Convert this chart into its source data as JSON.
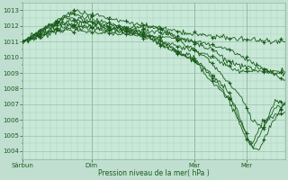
{
  "xlabel": "Pression niveau de la mer( hPa )",
  "bg_color": "#c0dfd0",
  "plot_bg_color": "#c8e8d8",
  "grid_color_minor": "#a8c8b8",
  "grid_color_major": "#90b8a0",
  "line_color": "#1a5c1a",
  "ylim": [
    1003.5,
    1013.5
  ],
  "yticks": [
    1004,
    1005,
    1006,
    1007,
    1008,
    1009,
    1010,
    1011,
    1012,
    1013
  ],
  "day_labels": [
    "Sârbun",
    "Dim",
    "Mar",
    "Mer"
  ],
  "day_positions": [
    0,
    60,
    150,
    195
  ],
  "n_points": 230
}
